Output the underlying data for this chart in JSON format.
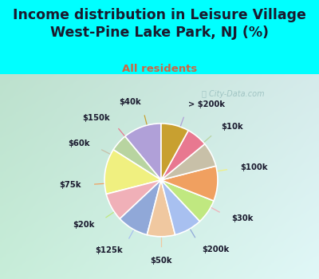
{
  "title": "Income distribution in Leisure Village\nWest-Pine Lake Park, NJ (%)",
  "subtitle": "All residents",
  "watermark": "ⓘ City-Data.com",
  "bg_cyan": "#00FFFF",
  "title_color": "#1a1a2e",
  "subtitle_color": "#cc6644",
  "labels": [
    "> $200k",
    "$10k",
    "$100k",
    "$30k",
    "$200k",
    "$50k",
    "$125k",
    "$20k",
    "$75k",
    "$60k",
    "$150k",
    "$40k"
  ],
  "values": [
    11,
    5,
    13,
    8,
    9,
    8,
    8,
    7,
    10,
    7,
    6,
    8
  ],
  "colors": [
    "#b0a0d8",
    "#b8d4a0",
    "#f0f080",
    "#f0b0b8",
    "#90a8d8",
    "#f0c8a0",
    "#a8c0f0",
    "#c0e880",
    "#f0a060",
    "#c8c0a8",
    "#e87890",
    "#c8a030"
  ],
  "start_angle": 90,
  "label_color": "#1a1a2e"
}
